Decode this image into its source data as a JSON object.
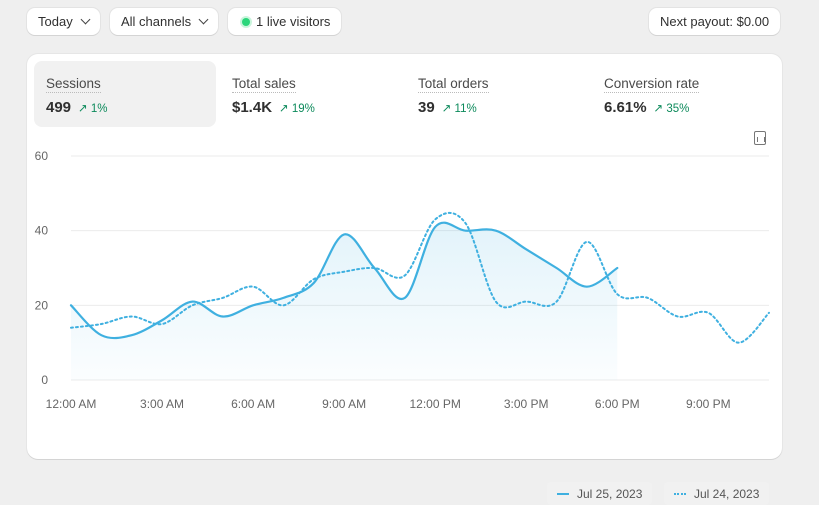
{
  "toolbar": {
    "date_label": "Today",
    "channel_label": "All channels",
    "live_label": "1 live visitors",
    "payout_label": "Next payout: $0.00"
  },
  "metrics": [
    {
      "label": "Sessions",
      "value": "499",
      "change": "1%",
      "active": true
    },
    {
      "label": "Total sales",
      "value": "$1.4K",
      "change": "19%"
    },
    {
      "label": "Total orders",
      "value": "39",
      "change": "11%"
    },
    {
      "label": "Conversion rate",
      "value": "6.61%",
      "change": "35%"
    }
  ],
  "colors": {
    "line": "#3fb0e0",
    "positive": "#0c8a5b",
    "live": "#2bd67b"
  },
  "icons": {
    "export": "chart-report-icon",
    "trend": "arrow-up-right-icon"
  },
  "chart_data": {
    "type": "line",
    "ylim": [
      0,
      60
    ],
    "yticks": [
      "0",
      "20",
      "40",
      "60"
    ],
    "xticks": [
      "12:00 AM",
      "3:00 AM",
      "6:00 AM",
      "9:00 AM",
      "12:00 PM",
      "3:00 PM",
      "6:00 PM",
      "9:00 PM"
    ],
    "xlim_hours": [
      0,
      23
    ],
    "grid": true,
    "legend_placement": "bottom-right",
    "series": [
      {
        "name": "Jul 25, 2023",
        "style": "solid",
        "values": [
          20,
          12,
          12,
          16,
          21,
          17,
          20,
          22,
          26,
          39,
          30,
          22,
          41,
          40,
          40,
          35,
          30,
          25,
          30
        ]
      },
      {
        "name": "Jul 24, 2023",
        "style": "dotted",
        "values": [
          14,
          15,
          17,
          15,
          20,
          22,
          25,
          20,
          27,
          29,
          30,
          28,
          43,
          42,
          21,
          21,
          21,
          37,
          23,
          22,
          17,
          18,
          10,
          18
        ]
      }
    ]
  }
}
